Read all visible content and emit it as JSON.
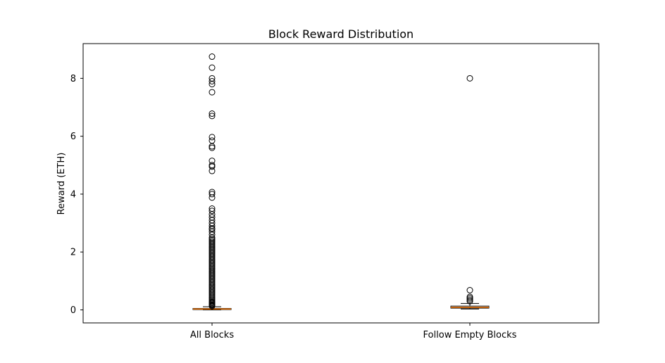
{
  "chart_data": {
    "type": "boxplot",
    "title": "Block Reward Distribution",
    "xlabel": "",
    "ylabel": "Reward (ETH)",
    "ylim": [
      -0.45,
      9.2
    ],
    "yticks": [
      0,
      2,
      4,
      6,
      8
    ],
    "categories": [
      "All Blocks",
      "Follow Empty Blocks"
    ],
    "grid": false,
    "colors": {
      "box": "#000000",
      "median": "#ff7f0e",
      "flier": "#000000"
    },
    "series": [
      {
        "category": "All Blocks",
        "whislo": 0.0,
        "q1": 0.01,
        "median": 0.03,
        "q3": 0.05,
        "whishi": 0.11,
        "fliers": [
          8.75,
          8.37,
          8.0,
          7.9,
          7.8,
          7.52,
          6.78,
          6.7,
          5.97,
          5.85,
          5.65,
          5.6,
          5.15,
          5.0,
          4.95,
          4.8,
          4.07,
          4.0,
          3.88,
          3.5,
          3.42,
          3.3,
          3.2,
          3.1,
          3.0,
          2.9,
          2.82,
          2.78,
          2.7,
          2.6,
          2.5,
          2.45,
          2.4,
          2.35,
          2.3,
          2.25,
          2.2,
          2.15,
          2.1,
          2.05,
          2.0,
          1.95,
          1.9,
          1.85,
          1.8,
          1.75,
          1.7,
          1.65,
          1.6,
          1.55,
          1.5,
          1.45,
          1.4,
          1.35,
          1.3,
          1.25,
          1.2,
          1.15,
          1.1,
          1.05,
          1.0,
          0.95,
          0.9,
          0.85,
          0.8,
          0.75,
          0.7,
          0.65,
          0.6,
          0.55,
          0.5,
          0.45,
          0.4,
          0.35,
          0.3,
          0.27,
          0.24,
          0.21,
          0.18,
          0.15,
          0.13
        ]
      },
      {
        "category": "Follow Empty Blocks",
        "whislo": 0.03,
        "q1": 0.06,
        "median": 0.09,
        "q3": 0.13,
        "whishi": 0.22,
        "fliers": [
          8.0,
          0.68,
          0.45,
          0.4,
          0.35,
          0.3
        ]
      }
    ]
  }
}
